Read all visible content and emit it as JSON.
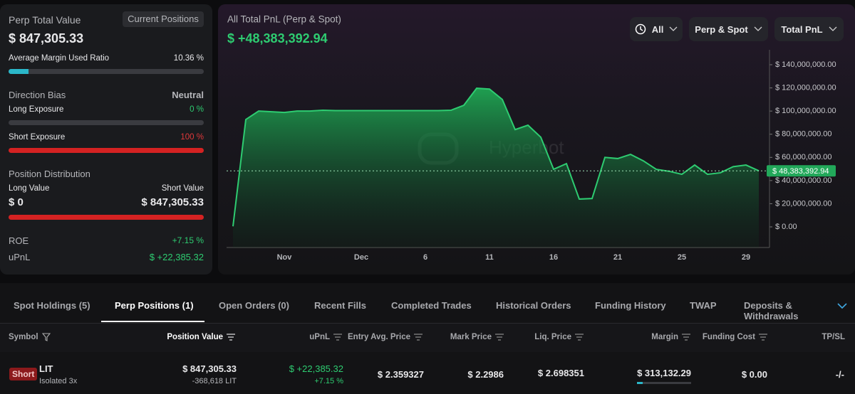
{
  "left_panel": {
    "perp_total_value_label": "Perp Total Value",
    "current_positions": "Current Positions",
    "perp_total_value": "$ 847,305.33",
    "avg_margin_label": "Average Margin Used Ratio",
    "avg_margin_value": "10.36 %",
    "direction_bias_label": "Direction Bias",
    "direction_bias_value": "Neutral",
    "long_exposure_label": "Long Exposure",
    "long_exposure_value": "0 %",
    "short_exposure_label": "Short Exposure",
    "short_exposure_value": "100 %",
    "position_distribution_label": "Position Distribution",
    "long_value_label": "Long Value",
    "short_value_label": "Short Value",
    "long_value": "$ 0",
    "short_value": "$ 847,305.33",
    "roe_label": "ROE",
    "roe_value": "+7.15 %",
    "upnl_label": "uPnL",
    "upnl_value": "$ +22,385.32"
  },
  "chart_data": {
    "type": "area",
    "title": "All Total PnL (Perp & Spot)",
    "subtitle": "$ +48,383,392.94",
    "watermark": "Hyperbot",
    "categories": [
      null,
      null,
      null,
      null,
      "Nov",
      null,
      null,
      null,
      null,
      null,
      "Dec",
      null,
      null,
      null,
      null,
      "6",
      null,
      null,
      null,
      null,
      "11",
      null,
      null,
      null,
      null,
      "16",
      null,
      null,
      null,
      null,
      "21",
      null,
      null,
      null,
      null,
      "25",
      null,
      null,
      null,
      null,
      "29",
      null
    ],
    "values": [
      500000,
      92700000,
      100000000,
      99400000,
      98800000,
      100000000,
      100000000,
      100700000,
      100400000,
      100400000,
      100400000,
      100400000,
      100400000,
      100400000,
      100400000,
      100400000,
      100400000,
      100700000,
      105000000,
      119700000,
      119000000,
      110000000,
      84000000,
      87800000,
      77400000,
      49700000,
      54600000,
      24000000,
      24500000,
      60000000,
      59000000,
      62600000,
      57000000,
      49700000,
      48000000,
      45400000,
      53400000,
      45400000,
      46700000,
      52000000,
      53400000,
      48383392.94
    ],
    "color": "#2ecc71",
    "ylim": [
      -17800000,
      152900000
    ],
    "yticks": [
      {
        "value": 0,
        "label": "$ 0.00"
      },
      {
        "value": 20000000,
        "label": "$ 20,000,000.00"
      },
      {
        "value": 40000000,
        "label": "$ 40,000,000.00"
      },
      {
        "value": 60000000,
        "label": "$ 60,000,000.00"
      },
      {
        "value": 80000000,
        "label": "$ 80,000,000.00"
      },
      {
        "value": 100000000,
        "label": "$ 100,000,000.00"
      },
      {
        "value": 120000000,
        "label": "$ 120,000,000.00"
      },
      {
        "value": 140000000,
        "label": "$ 140,000,000.00"
      }
    ],
    "reference_line": {
      "value": 48383392.94,
      "label": "$ 48,383,392.94"
    }
  },
  "controls": {
    "range": "All",
    "market": "Perp & Spot",
    "metric": "Total PnL"
  },
  "tabs": [
    "Spot Holdings (5)",
    "Perp Positions (1)",
    "Open Orders (0)",
    "Recent Fills",
    "Completed Trades",
    "Historical Orders",
    "Funding History",
    "TWAP",
    "Deposits & Withdrawals"
  ],
  "table": {
    "columns": [
      "Symbol",
      "Position Value",
      "uPnL",
      "Entry Avg. Price",
      "Mark Price",
      "Liq. Price",
      "Margin",
      "Funding Cost",
      "TP/SL"
    ],
    "rows": [
      {
        "side": "Short",
        "symbol": "LIT",
        "mode": "Isolated 3x",
        "position_value": "$ 847,305.33",
        "size": "-368,618 LIT",
        "upnl": "$ +22,385.32",
        "upnl_pct": "+7.15 %",
        "entry_price": "$ 2.359327",
        "mark_price": "$ 2.2986",
        "liq_price": "$ 2.698351",
        "margin": "$ 313,132.29",
        "funding_cost": "$ 0.00",
        "tpsl": "-/-"
      }
    ]
  }
}
